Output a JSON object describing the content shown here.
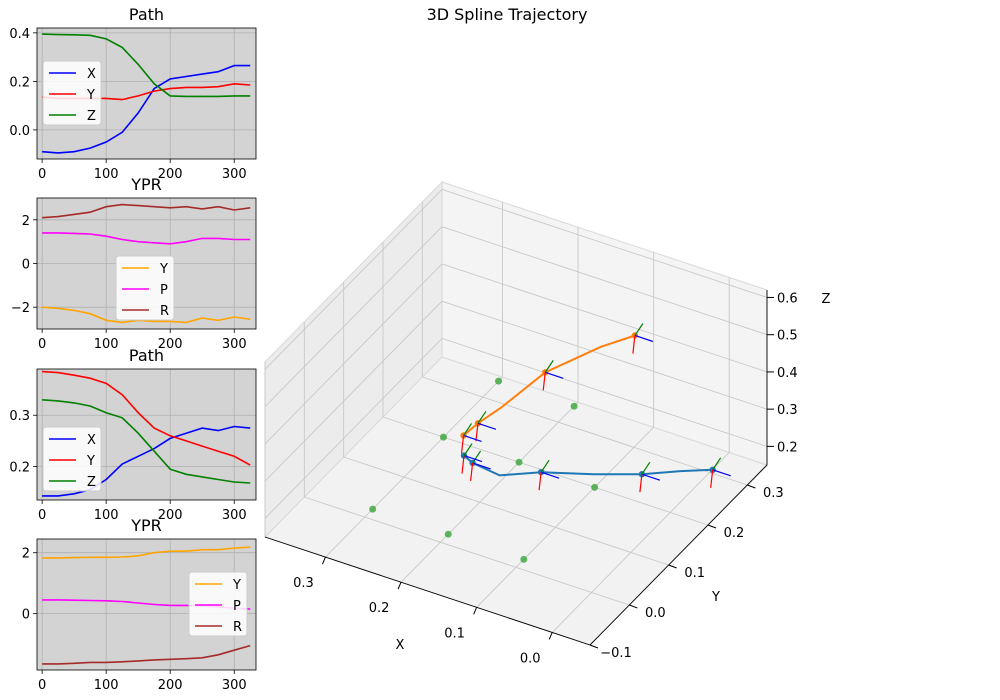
{
  "main_title": "3D Spline Trajectory",
  "colors": {
    "X": "#0000ff",
    "Y": "#ff0000",
    "Z": "#008000",
    "yaw": "#ffa500",
    "pitch": "#ff00ff",
    "roll": "#a52a2a",
    "traj1": "#1f77b4",
    "traj2": "#ff7f0e",
    "ground": "#2ca02c",
    "panel_bg": "#d3d3d3"
  },
  "chart_data": [
    {
      "type": "line",
      "title": "Path",
      "legend": "upper-left",
      "xlim": [
        -8,
        334
      ],
      "ylim": [
        -0.12,
        0.42
      ],
      "xticks": [
        0,
        100,
        200,
        300
      ],
      "xtick_labels": [
        "0",
        "100",
        "200",
        "300"
      ],
      "yticks": [
        0.0,
        0.2,
        0.4
      ],
      "ytick_labels": [
        "0.0",
        "0.2",
        "0.4"
      ],
      "x": [
        0,
        25,
        50,
        75,
        100,
        125,
        150,
        175,
        200,
        225,
        250,
        275,
        300,
        325
      ],
      "series": [
        {
          "name": "X",
          "color": "#0000ff",
          "values": [
            -0.09,
            -0.095,
            -0.09,
            -0.075,
            -0.05,
            -0.01,
            0.07,
            0.17,
            0.21,
            0.22,
            0.23,
            0.24,
            0.265,
            0.265
          ]
        },
        {
          "name": "Y",
          "color": "#ff0000",
          "values": [
            0.135,
            0.13,
            0.13,
            0.13,
            0.13,
            0.125,
            0.14,
            0.16,
            0.17,
            0.175,
            0.175,
            0.178,
            0.19,
            0.185
          ]
        },
        {
          "name": "Z",
          "color": "#008000",
          "values": [
            0.395,
            0.393,
            0.392,
            0.39,
            0.375,
            0.34,
            0.27,
            0.19,
            0.14,
            0.138,
            0.138,
            0.138,
            0.14,
            0.14
          ]
        }
      ]
    },
    {
      "type": "line",
      "title": "YPR",
      "legend": "lower-center",
      "xlim": [
        -8,
        334
      ],
      "ylim": [
        -3.0,
        3.0
      ],
      "xticks": [
        0,
        100,
        200,
        300
      ],
      "xtick_labels": [
        "0",
        "100",
        "200",
        "300"
      ],
      "yticks": [
        -2,
        0,
        2
      ],
      "ytick_labels": [
        "−2",
        "0",
        "2"
      ],
      "x": [
        0,
        25,
        50,
        75,
        100,
        125,
        150,
        175,
        200,
        225,
        250,
        275,
        300,
        325
      ],
      "series": [
        {
          "name": "Y",
          "color": "#ffa500",
          "values": [
            -2.0,
            -2.05,
            -2.15,
            -2.3,
            -2.6,
            -2.7,
            -2.6,
            -2.65,
            -2.65,
            -2.7,
            -2.5,
            -2.6,
            -2.45,
            -2.55
          ]
        },
        {
          "name": "P",
          "color": "#ff00ff",
          "values": [
            1.4,
            1.4,
            1.38,
            1.35,
            1.25,
            1.1,
            1.0,
            0.95,
            0.9,
            1.0,
            1.15,
            1.15,
            1.1,
            1.1
          ]
        },
        {
          "name": "R",
          "color": "#a52a2a",
          "values": [
            2.1,
            2.15,
            2.25,
            2.35,
            2.6,
            2.7,
            2.65,
            2.6,
            2.55,
            2.6,
            2.5,
            2.6,
            2.45,
            2.55
          ]
        }
      ]
    },
    {
      "type": "line",
      "title": "Path",
      "legend": "lower-left",
      "xlim": [
        -8,
        334
      ],
      "ylim": [
        0.135,
        0.39
      ],
      "xticks": [
        0,
        100,
        200,
        300
      ],
      "xtick_labels": [
        "0",
        "100",
        "200",
        "300"
      ],
      "yticks": [
        0.2,
        0.3
      ],
      "ytick_labels": [
        "0.2",
        "0.3"
      ],
      "x": [
        0,
        25,
        50,
        75,
        100,
        125,
        150,
        175,
        200,
        225,
        250,
        275,
        300,
        325
      ],
      "series": [
        {
          "name": "X",
          "color": "#0000ff",
          "values": [
            0.143,
            0.143,
            0.147,
            0.155,
            0.175,
            0.205,
            0.22,
            0.235,
            0.255,
            0.265,
            0.275,
            0.27,
            0.278,
            0.275
          ]
        },
        {
          "name": "Y",
          "color": "#ff0000",
          "values": [
            0.385,
            0.383,
            0.378,
            0.372,
            0.362,
            0.34,
            0.305,
            0.275,
            0.26,
            0.25,
            0.24,
            0.23,
            0.22,
            0.203
          ]
        },
        {
          "name": "Z",
          "color": "#008000",
          "values": [
            0.33,
            0.328,
            0.324,
            0.318,
            0.305,
            0.295,
            0.265,
            0.23,
            0.195,
            0.185,
            0.18,
            0.175,
            0.17,
            0.168
          ]
        }
      ]
    },
    {
      "type": "line",
      "title": "YPR",
      "legend": "right",
      "xlim": [
        -8,
        334
      ],
      "ylim": [
        -1.85,
        2.45
      ],
      "xticks": [
        0,
        100,
        200,
        300
      ],
      "xtick_labels": [
        "0",
        "100",
        "200",
        "300"
      ],
      "yticks": [
        0,
        2
      ],
      "ytick_labels": [
        "0",
        "2"
      ],
      "x": [
        0,
        25,
        50,
        75,
        100,
        125,
        150,
        175,
        200,
        225,
        250,
        275,
        300,
        325
      ],
      "series": [
        {
          "name": "Y",
          "color": "#ffa500",
          "values": [
            1.83,
            1.83,
            1.84,
            1.85,
            1.85,
            1.86,
            1.9,
            2.0,
            2.05,
            2.05,
            2.1,
            2.1,
            2.15,
            2.18
          ]
        },
        {
          "name": "P",
          "color": "#ff00ff",
          "values": [
            0.45,
            0.45,
            0.44,
            0.43,
            0.42,
            0.4,
            0.35,
            0.3,
            0.27,
            0.27,
            0.25,
            0.22,
            0.18,
            0.15
          ]
        },
        {
          "name": "R",
          "color": "#a52a2a",
          "values": [
            -1.65,
            -1.65,
            -1.63,
            -1.6,
            -1.6,
            -1.58,
            -1.55,
            -1.52,
            -1.5,
            -1.48,
            -1.45,
            -1.35,
            -1.2,
            -1.05
          ]
        }
      ]
    },
    {
      "type": "line3d",
      "title": "3D Spline Trajectory",
      "xlabel": "X",
      "ylabel": "Y",
      "zlabel": "Z",
      "xlim": [
        -0.05,
        0.38
      ],
      "ylim": [
        -0.1,
        0.35
      ],
      "zlim": [
        0.15,
        0.62
      ],
      "xticks": [
        0.0,
        0.1,
        0.2,
        0.3
      ],
      "xtick_labels": [
        "0.0",
        "0.1",
        "0.2",
        "0.3"
      ],
      "yticks": [
        -0.1,
        0.0,
        0.1,
        0.2,
        0.3
      ],
      "ytick_labels": [
        "−0.1",
        "0.0",
        "0.1",
        "0.2",
        "0.3"
      ],
      "zticks": [
        0.2,
        0.3,
        0.4,
        0.5,
        0.6
      ],
      "ztick_labels": [
        "0.2",
        "0.3",
        "0.4",
        "0.5",
        "0.6"
      ],
      "trajectory_1": {
        "color": "#1f77b4",
        "points": [
          [
            -0.09,
            0.135,
            0.395
          ],
          [
            -0.05,
            0.13,
            0.37
          ],
          [
            0.0,
            0.128,
            0.33
          ],
          [
            0.07,
            0.14,
            0.27
          ],
          [
            0.15,
            0.16,
            0.2
          ],
          [
            0.21,
            0.17,
            0.14
          ],
          [
            0.25,
            0.178,
            0.138
          ],
          [
            0.265,
            0.185,
            0.14
          ]
        ]
      },
      "trajectory_2": {
        "color": "#ff7f0e",
        "points": [
          [
            0.143,
            0.385,
            0.33
          ],
          [
            0.175,
            0.36,
            0.305
          ],
          [
            0.22,
            0.305,
            0.265
          ],
          [
            0.255,
            0.26,
            0.195
          ],
          [
            0.27,
            0.23,
            0.175
          ],
          [
            0.275,
            0.203,
            0.168
          ]
        ]
      },
      "ground_points": {
        "color": "#2ca02c",
        "points": [
          [
            0.1,
            0.02
          ],
          [
            0.2,
            0.02
          ],
          [
            0.3,
            0.02
          ],
          [
            0.1,
            0.2
          ],
          [
            0.2,
            0.2
          ],
          [
            0.3,
            0.2
          ],
          [
            0.2,
            0.34
          ],
          [
            0.3,
            0.34
          ]
        ]
      }
    }
  ]
}
